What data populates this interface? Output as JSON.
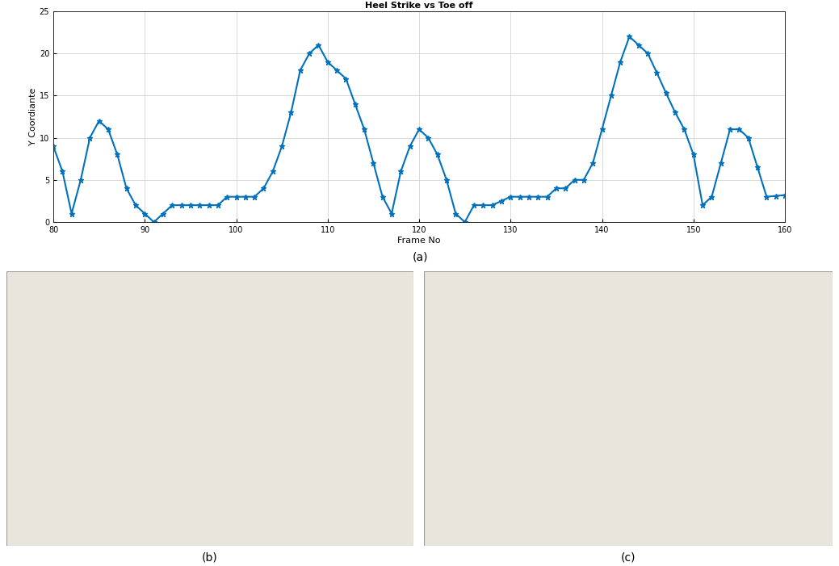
{
  "chart_data": {
    "type": "line",
    "title": "Heel Strike vs Toe off",
    "x_label": "Frame No",
    "y_label": "Y Coordiante",
    "x": [
      80,
      81,
      82,
      83,
      84,
      85,
      86,
      87,
      88,
      89,
      90,
      91,
      92,
      93,
      94,
      95,
      96,
      97,
      98,
      99,
      100,
      101,
      102,
      103,
      104,
      105,
      106,
      107,
      108,
      109,
      110,
      111,
      112,
      113,
      114,
      115,
      116,
      117,
      118,
      119,
      120,
      121,
      122,
      123,
      124,
      125,
      126,
      127,
      128,
      129,
      130,
      131,
      132,
      133,
      134,
      135,
      136,
      137,
      138,
      139,
      140,
      141,
      142,
      143,
      144,
      145,
      146,
      147,
      148,
      149,
      150,
      151,
      152,
      153,
      154,
      155,
      156,
      157,
      158,
      159,
      160
    ],
    "values": [
      9,
      6,
      1,
      5,
      10,
      12,
      11,
      8,
      4,
      2,
      1,
      0,
      1,
      2,
      2,
      2,
      2,
      2,
      2,
      3,
      3,
      3,
      3,
      4,
      6,
      9,
      13,
      18,
      20,
      21,
      19,
      18,
      17,
      14,
      11,
      7,
      3,
      1,
      6,
      9,
      11,
      10,
      8,
      5,
      1,
      0,
      2,
      2,
      2,
      2.5,
      3,
      3,
      3,
      3,
      3,
      4,
      4,
      5,
      5,
      7,
      11,
      15,
      19,
      22,
      21,
      20,
      17.7,
      15.3,
      13,
      11,
      8,
      2,
      3,
      7,
      11,
      11,
      10,
      6.5,
      3,
      3.1,
      3.2
    ],
    "color": "#0072bd",
    "marker": "*",
    "line_style": "solid",
    "xlim": [
      80,
      160
    ],
    "xticks": [
      80,
      90,
      100,
      110,
      120,
      130,
      140,
      150,
      160
    ],
    "ylim": [
      0,
      25
    ],
    "yticks": [
      0,
      5,
      10,
      15,
      20,
      25
    ],
    "grid": true
  },
  "captions": [
    "(a)",
    "(b)",
    "(c)"
  ]
}
